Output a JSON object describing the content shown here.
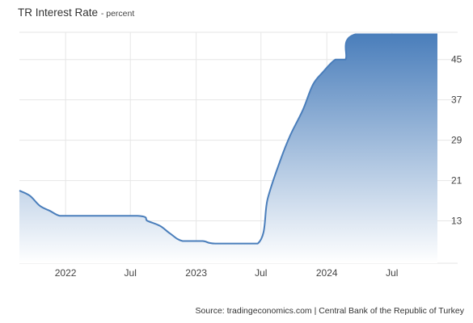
{
  "chart_data": {
    "type": "area",
    "title": "TR Interest Rate",
    "subtitle": "percent",
    "xlabel": "",
    "ylabel": "",
    "source": "Source: tradingeconomics.com | Central Bank of the Republic of Turkey",
    "x_range": [
      "2021-08-25",
      "2024-11-05"
    ],
    "ylim": [
      4.6,
      50.4
    ],
    "y_ticks": [
      13,
      21,
      29,
      37,
      45
    ],
    "x_ticks": [
      {
        "date": "2022-01-01",
        "label": "2022"
      },
      {
        "date": "2022-07-01",
        "label": "Jul"
      },
      {
        "date": "2023-01-01",
        "label": "2023"
      },
      {
        "date": "2023-07-01",
        "label": "Jul"
      },
      {
        "date": "2024-01-01",
        "label": "2024"
      },
      {
        "date": "2024-07-01",
        "label": "Jul"
      }
    ],
    "grid": true,
    "legend": "none",
    "colors": {
      "line": "#4a7ebb",
      "fill_top": "#4a7ebb",
      "fill_bottom": "#ffffff",
      "grid": "#e6e6e6"
    },
    "series": [
      {
        "x": [
          "2021-08-25",
          "2021-09-23",
          "2021-10-21",
          "2021-11-18",
          "2021-12-16",
          "2022-01-20",
          "2022-07-21",
          "2022-08-18",
          "2022-09-22",
          "2022-10-20",
          "2022-11-24",
          "2023-01-19",
          "2023-02-23",
          "2023-06-22",
          "2023-07-20",
          "2023-08-24",
          "2023-09-21",
          "2023-10-26",
          "2023-11-23",
          "2023-12-21",
          "2024-01-25",
          "2024-02-22",
          "2024-03-21",
          "2024-11-05"
        ],
        "y": [
          19,
          18,
          16,
          15,
          14,
          14,
          14,
          13,
          12,
          10.5,
          9,
          9,
          8.5,
          8.5,
          17.5,
          25,
          30,
          35,
          40,
          42.5,
          45,
          45,
          50,
          50
        ]
      }
    ]
  }
}
